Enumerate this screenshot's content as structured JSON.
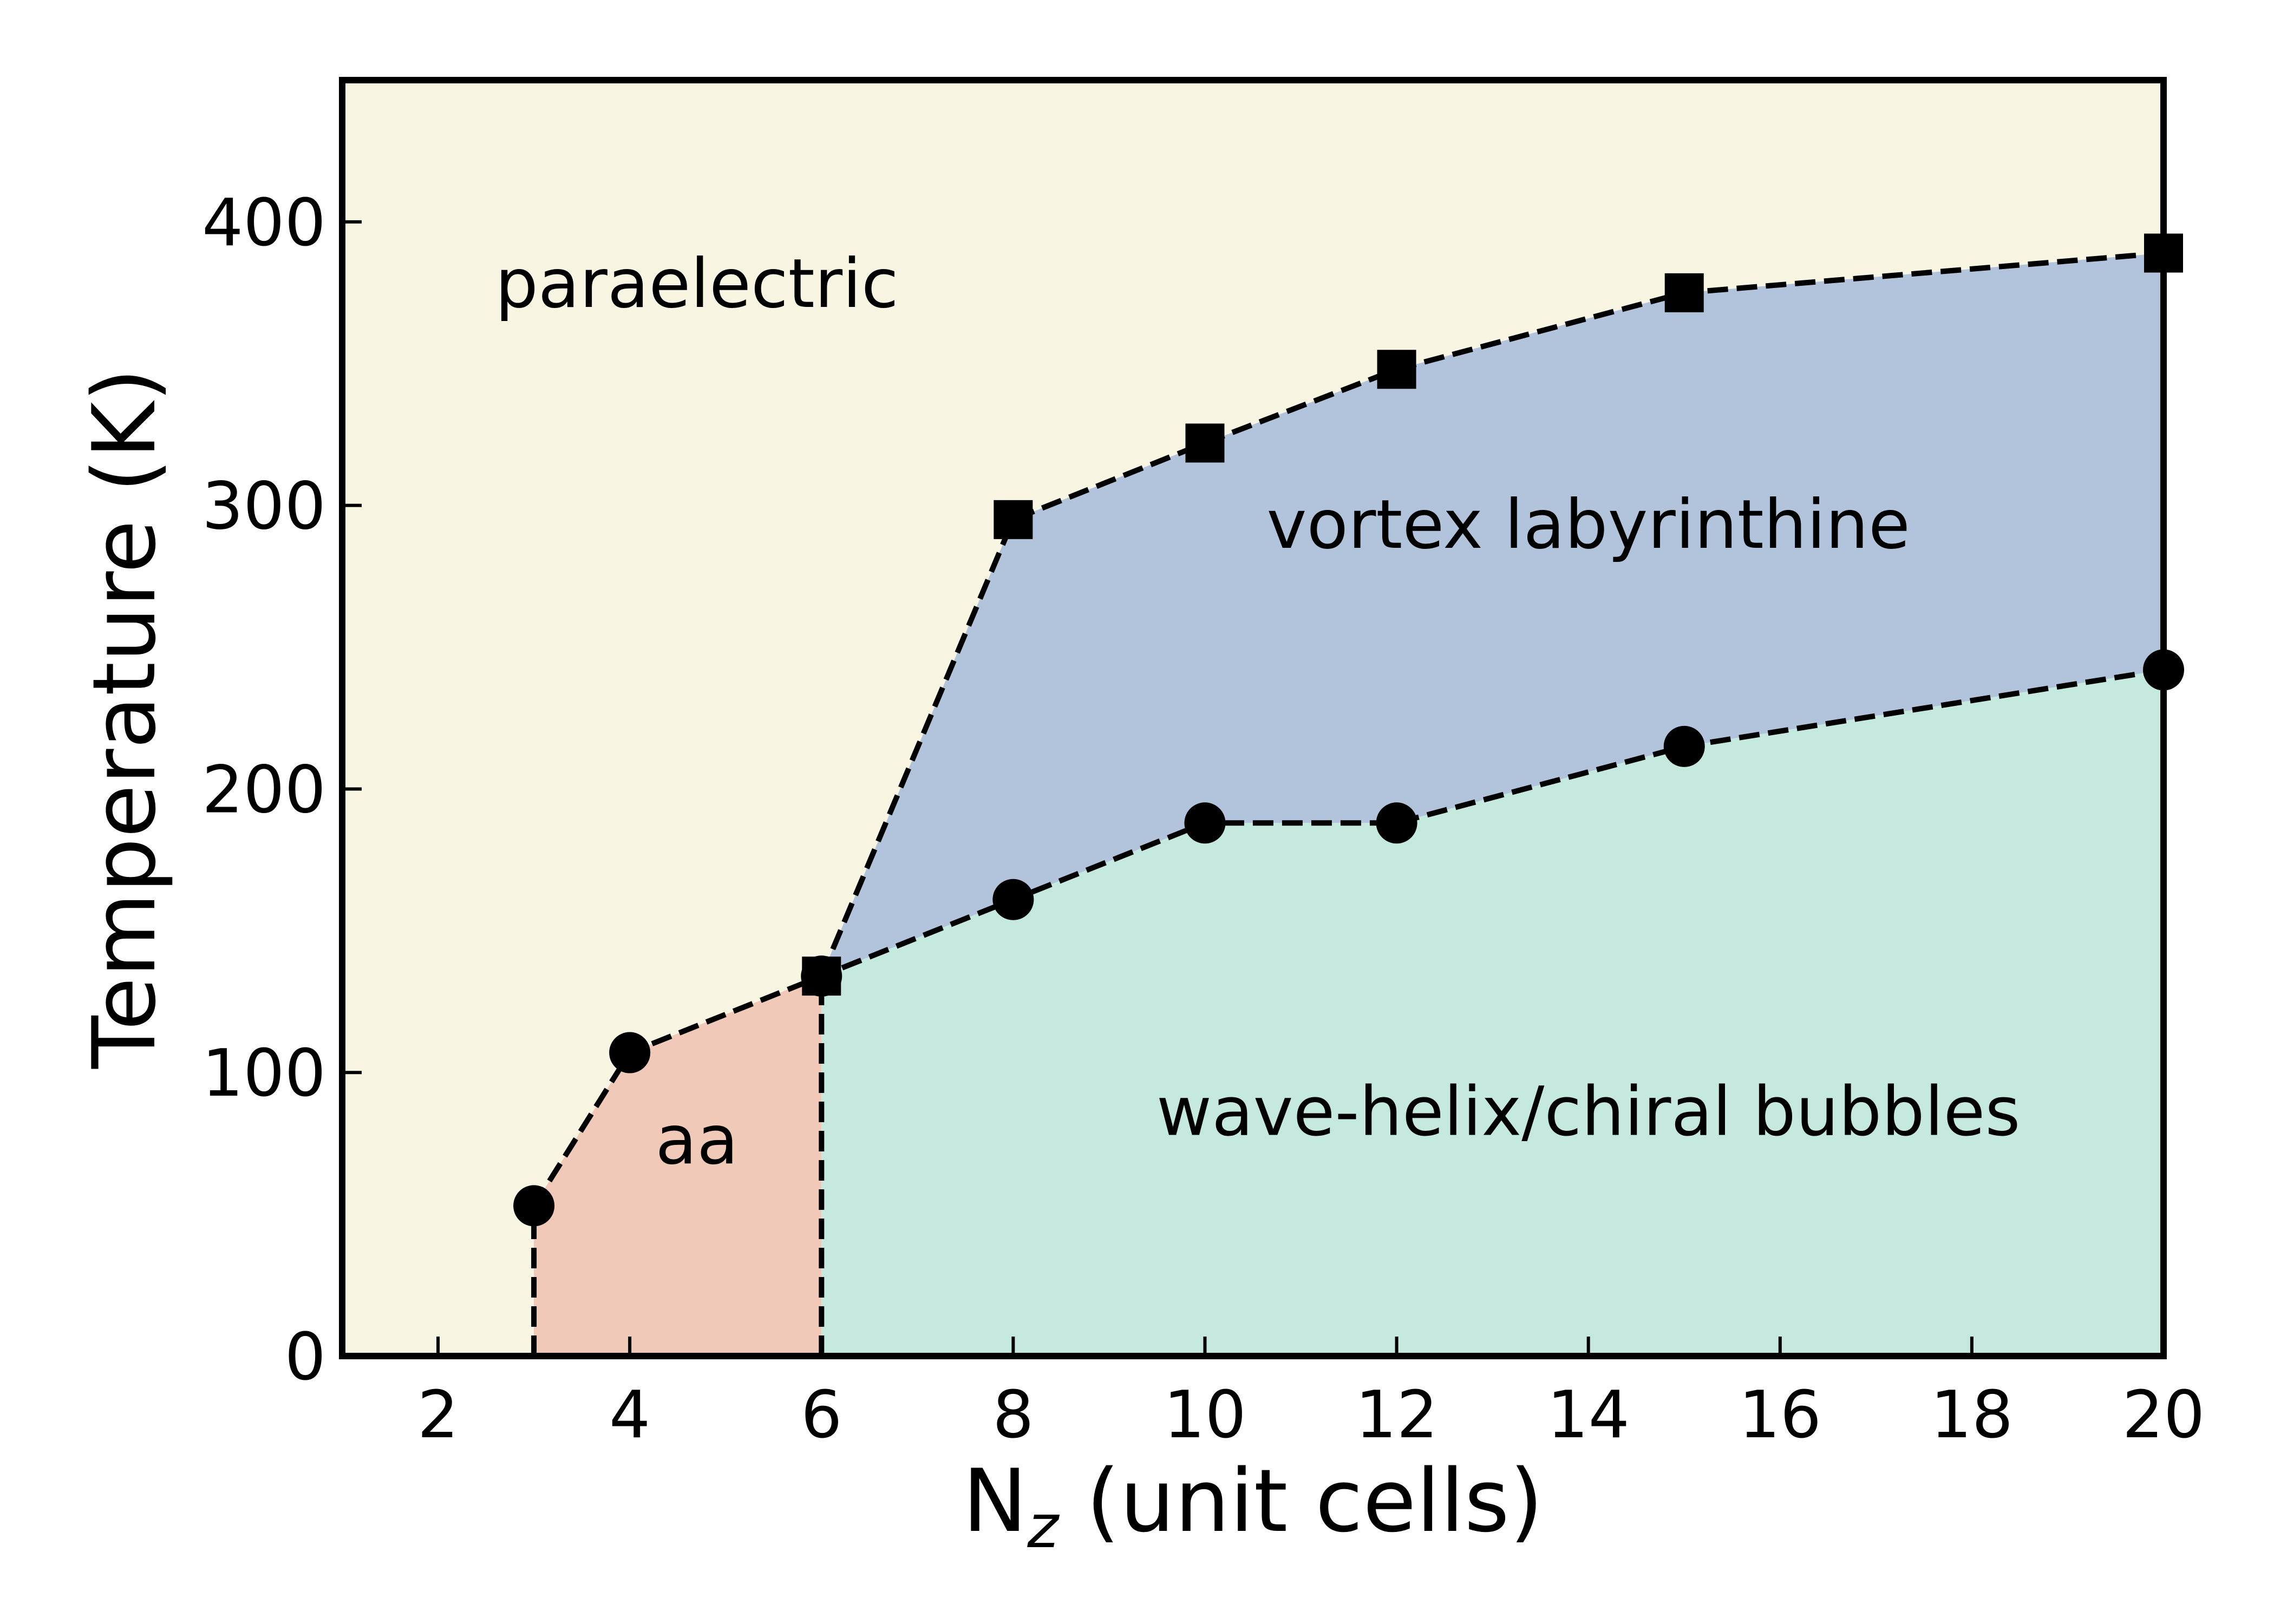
{
  "chart_data": {
    "type": "line",
    "xlabel_main": "N",
    "xlabel_sub": "z",
    "xlabel_rest": " (unit cells)",
    "ylabel": "Temperature (K)",
    "xlim": [
      1,
      20
    ],
    "ylim": [
      0,
      450
    ],
    "x_ticks": [
      2,
      4,
      6,
      8,
      10,
      12,
      14,
      16,
      18,
      20
    ],
    "y_ticks": [
      0,
      100,
      200,
      300,
      400
    ],
    "grid": false,
    "series": [
      {
        "marker": "square",
        "x": [
          6,
          8,
          10,
          12,
          15,
          20
        ],
        "y": [
          134,
          295,
          322,
          348,
          375,
          389
        ]
      },
      {
        "marker": "circle",
        "x": [
          3,
          4,
          6,
          8,
          10,
          12,
          15,
          20
        ],
        "y": [
          53,
          107,
          134,
          161,
          188,
          188,
          215,
          242
        ]
      }
    ],
    "boundaries": [
      {
        "x": [
          3,
          3
        ],
        "y": [
          0,
          53
        ]
      },
      {
        "x": [
          6,
          6
        ],
        "y": [
          0,
          134
        ]
      }
    ],
    "regions": [
      {
        "label": "paraelectric",
        "color": "#f8f6e2",
        "label_at": [
          4.7,
          370
        ]
      },
      {
        "label": "aa",
        "color": "#f0c9b8",
        "label_at": [
          4.7,
          68
        ]
      },
      {
        "label": "vortex labyrinthine",
        "color": "#b2c4db",
        "label_at": [
          14,
          285
        ]
      },
      {
        "label": "wave-helix/chiral bubbles",
        "color": "#c5e9df",
        "label_at": [
          14,
          78
        ]
      }
    ]
  }
}
